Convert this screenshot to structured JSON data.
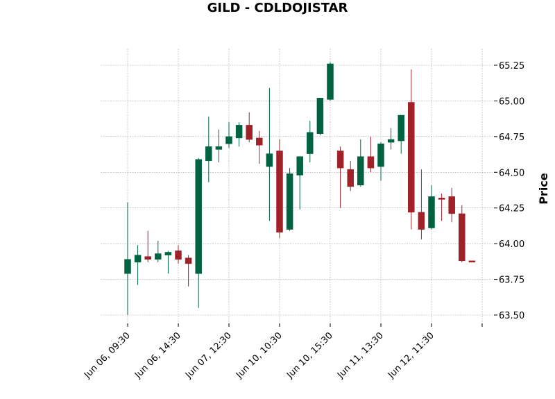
{
  "chart_data": {
    "type": "candlestick",
    "title": "GILD - CDLDOJISTAR",
    "ylabel": "Price",
    "xlabel": "",
    "ylim": [
      63.42,
      65.35
    ],
    "yticks": [
      63.5,
      63.75,
      64.0,
      64.25,
      64.5,
      64.75,
      65.0,
      65.25
    ],
    "xtick_labels": [
      "Jun 06, 09:30",
      "Jun 06, 14:30",
      "Jun 07, 12:30",
      "Jun 10, 10:30",
      "Jun 10, 15:30",
      "Jun 11, 13:30",
      "Jun 12, 11:30",
      ""
    ],
    "xtick_positions": [
      0,
      5,
      10,
      15,
      20,
      25,
      30,
      35
    ],
    "grid": true,
    "colors": {
      "up": "#006340",
      "down": "#a02128",
      "grid": "#aaaaaa"
    },
    "candles": [
      {
        "o": 63.79,
        "h": 64.29,
        "l": 63.5,
        "c": 63.89
      },
      {
        "o": 63.87,
        "h": 63.99,
        "l": 63.71,
        "c": 63.92
      },
      {
        "o": 63.91,
        "h": 64.09,
        "l": 63.87,
        "c": 63.89
      },
      {
        "o": 63.89,
        "h": 64.02,
        "l": 63.87,
        "c": 63.93
      },
      {
        "o": 63.92,
        "h": 63.95,
        "l": 63.79,
        "c": 63.94
      },
      {
        "o": 63.95,
        "h": 63.99,
        "l": 63.86,
        "c": 63.89
      },
      {
        "o": 63.9,
        "h": 63.92,
        "l": 63.7,
        "c": 63.86
      },
      {
        "o": 63.79,
        "h": 64.6,
        "l": 63.55,
        "c": 64.59
      },
      {
        "o": 64.58,
        "h": 64.89,
        "l": 64.43,
        "c": 64.68
      },
      {
        "o": 64.66,
        "h": 64.8,
        "l": 64.57,
        "c": 64.68
      },
      {
        "o": 64.7,
        "h": 64.85,
        "l": 64.67,
        "c": 64.75
      },
      {
        "o": 64.74,
        "h": 64.85,
        "l": 64.68,
        "c": 64.83
      },
      {
        "o": 64.83,
        "h": 64.92,
        "l": 64.71,
        "c": 64.73
      },
      {
        "o": 64.74,
        "h": 64.79,
        "l": 64.56,
        "c": 64.69
      },
      {
        "o": 64.54,
        "h": 65.09,
        "l": 64.16,
        "c": 64.63
      },
      {
        "o": 64.65,
        "h": 64.73,
        "l": 64.04,
        "c": 64.08
      },
      {
        "o": 64.1,
        "h": 64.53,
        "l": 64.09,
        "c": 64.49
      },
      {
        "o": 64.48,
        "h": 64.61,
        "l": 64.24,
        "c": 64.61
      },
      {
        "o": 64.63,
        "h": 64.86,
        "l": 64.57,
        "c": 64.78
      },
      {
        "o": 64.77,
        "h": 65.02,
        "l": 64.76,
        "c": 65.02
      },
      {
        "o": 65.01,
        "h": 65.27,
        "l": 65.0,
        "c": 65.26
      },
      {
        "o": 64.65,
        "h": 64.68,
        "l": 64.25,
        "c": 64.53
      },
      {
        "o": 64.52,
        "h": 64.58,
        "l": 64.37,
        "c": 64.4
      },
      {
        "o": 64.41,
        "h": 64.73,
        "l": 64.4,
        "c": 64.61
      },
      {
        "o": 64.61,
        "h": 64.75,
        "l": 64.5,
        "c": 64.53
      },
      {
        "o": 64.54,
        "h": 64.71,
        "l": 64.44,
        "c": 64.7
      },
      {
        "o": 64.71,
        "h": 64.81,
        "l": 64.66,
        "c": 64.73
      },
      {
        "o": 64.72,
        "h": 64.9,
        "l": 64.63,
        "c": 64.9
      },
      {
        "o": 64.99,
        "h": 65.22,
        "l": 64.1,
        "c": 64.22
      },
      {
        "o": 64.22,
        "h": 64.52,
        "l": 64.03,
        "c": 64.1
      },
      {
        "o": 64.11,
        "h": 64.41,
        "l": 64.1,
        "c": 64.33
      },
      {
        "o": 64.32,
        "h": 64.35,
        "l": 64.16,
        "c": 64.31
      },
      {
        "o": 64.33,
        "h": 64.39,
        "l": 64.15,
        "c": 64.21
      },
      {
        "o": 64.21,
        "h": 64.27,
        "l": 63.87,
        "c": 63.88
      },
      {
        "o": 63.88,
        "h": 63.88,
        "l": 63.87,
        "c": 63.87
      }
    ]
  }
}
